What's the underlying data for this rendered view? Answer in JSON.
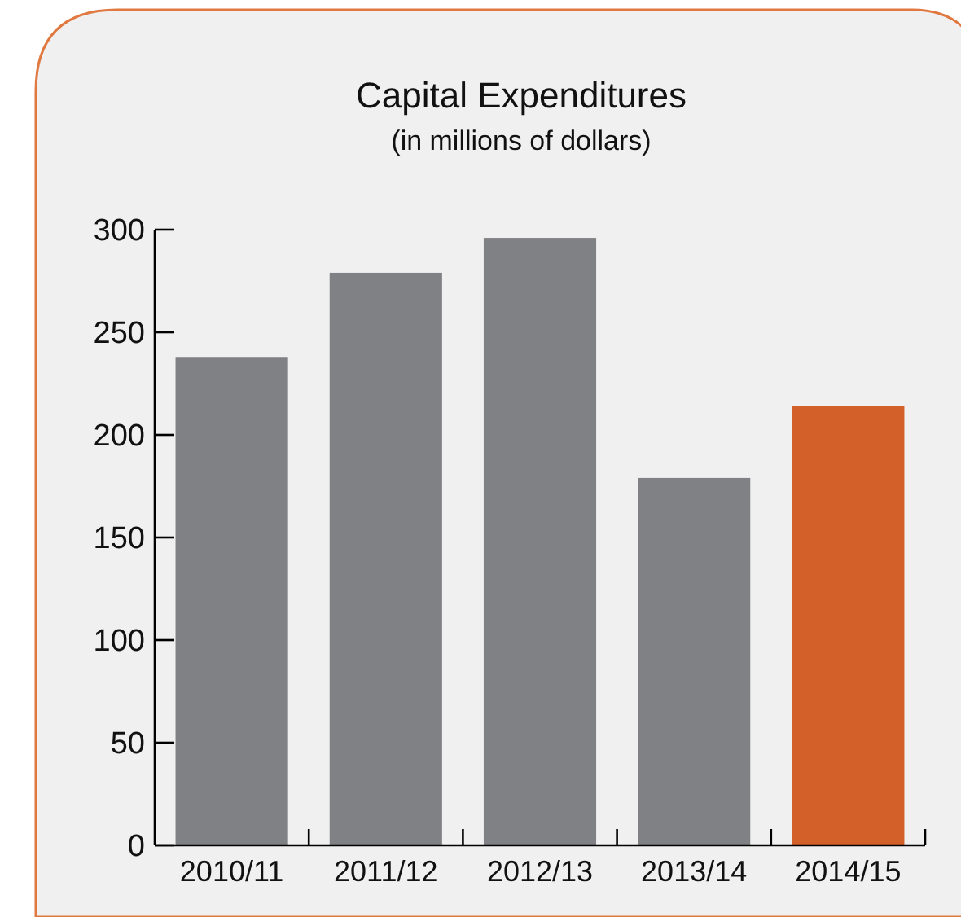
{
  "chart_data": {
    "type": "bar",
    "title": "Capital Expenditures",
    "subtitle": "(in millions of dollars)",
    "categories": [
      "2010/11",
      "2011/12",
      "2012/13",
      "2013/14",
      "2014/15"
    ],
    "values": [
      238,
      279,
      296,
      179,
      214
    ],
    "colors": [
      "#808184",
      "#808184",
      "#808184",
      "#808184",
      "#d26028"
    ],
    "ylim": [
      0,
      300
    ],
    "yticks": [
      0,
      50,
      100,
      150,
      200,
      250,
      300
    ],
    "grid": false
  }
}
